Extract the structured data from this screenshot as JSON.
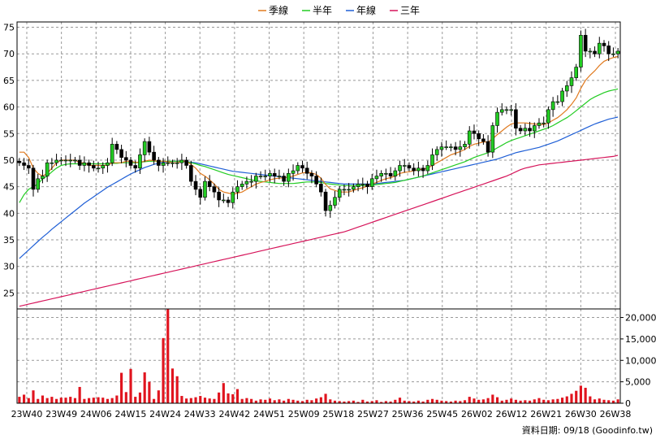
{
  "chart_data": {
    "type": "candlestick",
    "legend": [
      {
        "label": "季線",
        "color": "#e07a1f"
      },
      {
        "label": "半年",
        "color": "#22cc22"
      },
      {
        "label": "年線",
        "color": "#1f5fd6"
      },
      {
        "label": "三年",
        "color": "#d6145a"
      }
    ],
    "legend_position": "top-center",
    "price_axis": {
      "ylim": [
        22,
        76
      ],
      "ticks": [
        25,
        30,
        35,
        40,
        45,
        50,
        55,
        60,
        65,
        70,
        75
      ],
      "side": "left"
    },
    "volume_axis": {
      "ylim": [
        0,
        22000
      ],
      "ticks": [
        0,
        5000,
        10000,
        15000,
        20000
      ],
      "tick_labels": [
        "0",
        "5,000",
        "10,000",
        "15,000",
        "20,000"
      ],
      "side": "right"
    },
    "x_tick_labels": [
      "23W40",
      "23W49",
      "24W06",
      "24W15",
      "24W24",
      "24W33",
      "24W42",
      "24W51",
      "25W09",
      "25W18",
      "25W27",
      "25W36",
      "25W45",
      "26W02",
      "26W12",
      "26W21",
      "26W30",
      "26W38"
    ],
    "grid": true,
    "up_color": "#22cc22",
    "down_color": "#000000",
    "volume_color": "#e0141e",
    "footer_note": "資料日期: 09/18  (Goodinfo.tw)",
    "close": [
      49.5,
      49,
      48.5,
      44.5,
      46.5,
      47,
      49.5,
      49.5,
      50,
      50,
      50,
      50,
      50,
      49,
      49.5,
      49,
      48.5,
      48.5,
      49,
      49.5,
      53,
      52,
      50.5,
      50,
      49,
      48.5,
      51,
      53.5,
      51.5,
      50,
      49,
      49.5,
      49.5,
      49.5,
      49.5,
      50,
      49,
      46,
      44.5,
      43,
      46,
      45,
      44,
      42.5,
      42.5,
      42,
      44,
      45,
      45.5,
      46,
      46,
      47,
      47,
      47,
      47.5,
      47,
      47,
      46,
      47.5,
      48,
      49,
      48.5,
      47.5,
      47,
      45.5,
      44,
      40.5,
      41.5,
      43,
      44.5,
      44.5,
      44.5,
      45,
      45.5,
      45.5,
      45,
      46.5,
      47,
      47.5,
      47.5,
      47,
      48,
      49,
      49,
      48.5,
      48,
      48.5,
      48,
      49,
      51,
      52,
      52.5,
      52.5,
      52.5,
      52,
      52.5,
      53,
      55.5,
      55,
      54,
      53.5,
      51.5,
      56.5,
      59,
      59.5,
      59.5,
      59.5,
      56,
      55.5,
      56,
      55.5,
      56.5,
      57,
      57,
      59.5,
      61,
      61,
      63,
      64,
      65.5,
      67.5,
      73.5,
      70.5,
      70.5,
      70,
      72,
      71.5,
      70,
      70,
      70.5
    ],
    "volume": [
      1500,
      2000,
      1200,
      3000,
      1000,
      1800,
      1200,
      1500,
      1000,
      1300,
      1300,
      1500,
      1200,
      3800,
      1000,
      1200,
      1300,
      1400,
      1300,
      1000,
      1200,
      1800,
      7100,
      2600,
      8000,
      1500,
      2500,
      7200,
      5000,
      1000,
      3000,
      15200,
      21900,
      8100,
      6300,
      1700,
      1100,
      1200,
      1400,
      1700,
      1300,
      1100,
      1000,
      2500,
      4700,
      2300,
      2100,
      3300,
      1000,
      1200,
      1000,
      600,
      900,
      800,
      1100,
      700,
      900,
      600,
      1000,
      800,
      600,
      500,
      800,
      700,
      1100,
      1400,
      2200,
      900,
      600,
      500,
      400,
      500,
      600,
      300,
      800,
      400,
      500,
      700,
      300,
      500,
      400,
      800,
      1300,
      600,
      500,
      400,
      600,
      400,
      800,
      1000,
      800,
      600,
      500,
      400,
      600,
      500,
      700,
      1500,
      1100,
      800,
      900,
      1200,
      2000,
      1400,
      600,
      800,
      1100,
      800,
      600,
      700,
      600,
      900,
      1200,
      800,
      700,
      900,
      1000,
      1300,
      1600,
      2200,
      2900,
      4100,
      3600,
      1600,
      900,
      1100,
      800,
      700,
      600,
      900
    ],
    "ma_quarter": [
      51.5,
      51.5,
      50.5,
      48.5,
      47.5,
      47,
      47.5,
      48.5,
      49.5,
      50,
      50,
      50,
      50,
      49.5,
      49.5,
      49,
      49,
      49,
      49,
      49,
      49.5,
      49.5,
      49.5,
      49.8,
      49.8,
      49.6,
      49.6,
      49.8,
      50,
      49.9,
      49.8,
      49.8,
      49.7,
      49.5,
      49.5,
      49.8,
      49.8,
      49.2,
      48.5,
      47.5,
      47,
      46.3,
      45.5,
      44.5,
      44,
      43.8,
      43.6,
      43.8,
      44,
      44.5,
      45,
      45.5,
      45.8,
      46,
      46.3,
      46.5,
      46.6,
      46.7,
      46.8,
      47,
      47.3,
      47.6,
      47.7,
      47.6,
      47.3,
      46.6,
      45.4,
      44.6,
      44.3,
      44,
      44,
      44,
      44.3,
      44.6,
      44.8,
      45.1,
      45.5,
      45.8,
      46.2,
      46.5,
      46.7,
      47,
      47.5,
      47.7,
      47.8,
      48,
      48.2,
      48.3,
      48.5,
      49,
      49.5,
      50,
      50.5,
      51,
      51.3,
      51.6,
      52,
      52.6,
      53,
      53.2,
      53.4,
      53.4,
      54,
      54.8,
      55.5,
      56.2,
      56.8,
      57,
      57,
      57,
      56.9,
      56.8,
      56.7,
      56.7,
      57,
      57.5,
      58,
      58.7,
      59.5,
      60.5,
      61.7,
      63.5,
      65,
      66,
      66.8,
      67.8,
      68.6,
      69,
      69.3,
      69.5
    ],
    "ma_half": [
      42,
      43.5,
      44.5,
      45,
      45.5,
      46.5,
      47,
      47.8,
      48.5,
      49,
      49.2,
      49.3,
      49.3,
      49.3,
      49.3,
      49.3,
      49.3,
      49.3,
      49.3,
      49.3,
      49.4,
      49.4,
      49.5,
      49.5,
      49.5,
      49.5,
      49.6,
      49.7,
      49.8,
      49.8,
      49.8,
      49.8,
      49.8,
      49.8,
      49.8,
      49.8,
      49.7,
      49.5,
      49.3,
      49,
      48.8,
      48.5,
      48.2,
      47.9,
      47.6,
      47.3,
      47.1,
      46.9,
      46.7,
      46.5,
      46.3,
      46.1,
      46,
      45.9,
      45.8,
      45.7,
      45.6,
      45.6,
      45.6,
      45.6,
      45.7,
      45.8,
      45.9,
      45.9,
      45.9,
      45.8,
      45.6,
      45.5,
      45.4,
      45.3,
      45.2,
      45.2,
      45.2,
      45.2,
      45.2,
      45.3,
      45.3,
      45.4,
      45.5,
      45.6,
      45.7,
      45.8,
      46,
      46.2,
      46.4,
      46.6,
      46.8,
      47,
      47.3,
      47.6,
      47.9,
      48.2,
      48.5,
      48.8,
      49.1,
      49.4,
      49.7,
      50.1,
      50.5,
      50.8,
      51.1,
      51.4,
      51.8,
      52.3,
      52.8,
      53.3,
      53.7,
      54,
      54.3,
      54.6,
      54.9,
      55.2,
      55.5,
      55.8,
      56.1,
      56.5,
      57,
      57.5,
      58,
      58.6,
      59.3,
      60,
      60.7,
      61.4,
      61.9,
      62.3,
      62.7,
      63,
      63.2,
      63.4
    ],
    "ma_year": [
      31.5,
      32.3,
      33.1,
      33.9,
      34.7,
      35.5,
      36.2,
      37,
      37.7,
      38.4,
      39.1,
      39.8,
      40.5,
      41.2,
      41.9,
      42.5,
      43.1,
      43.7,
      44.3,
      44.9,
      45.4,
      45.9,
      46.4,
      46.9,
      47.4,
      47.8,
      48.2,
      48.6,
      48.9,
      49.2,
      49.4,
      49.6,
      49.7,
      49.8,
      49.8,
      49.8,
      49.7,
      49.6,
      49.5,
      49.3,
      49.1,
      48.9,
      48.7,
      48.5,
      48.3,
      48.1,
      47.9,
      47.8,
      47.7,
      47.6,
      47.5,
      47.4,
      47.3,
      47.2,
      47.1,
      47,
      46.9,
      46.8,
      46.7,
      46.6,
      46.5,
      46.4,
      46.3,
      46.2,
      46.1,
      46,
      45.9,
      45.8,
      45.7,
      45.6,
      45.5,
      45.5,
      45.5,
      45.5,
      45.5,
      45.5,
      45.5,
      45.6,
      45.7,
      45.8,
      45.9,
      46,
      46.1,
      46.2,
      46.4,
      46.6,
      46.8,
      47,
      47.2,
      47.4,
      47.6,
      47.8,
      48,
      48.2,
      48.4,
      48.6,
      48.8,
      49,
      49.2,
      49.4,
      49.6,
      49.8,
      50,
      50.2,
      50.5,
      50.8,
      51.1,
      51.4,
      51.6,
      51.8,
      52,
      52.2,
      52.4,
      52.7,
      53,
      53.3,
      53.6,
      54,
      54.4,
      54.8,
      55.2,
      55.6,
      56,
      56.4,
      56.8,
      57.1,
      57.4,
      57.7,
      57.9,
      58.1
    ],
    "ma_3year": [
      22.5,
      22.7,
      22.9,
      23.1,
      23.3,
      23.5,
      23.7,
      23.9,
      24.1,
      24.3,
      24.5,
      24.7,
      24.9,
      25.1,
      25.3,
      25.5,
      25.7,
      25.9,
      26.1,
      26.3,
      26.5,
      26.7,
      26.9,
      27.1,
      27.3,
      27.5,
      27.7,
      27.9,
      28.1,
      28.3,
      28.5,
      28.7,
      28.9,
      29.1,
      29.3,
      29.5,
      29.7,
      29.9,
      30.1,
      30.3,
      30.5,
      30.7,
      30.9,
      31.1,
      31.3,
      31.5,
      31.7,
      31.9,
      32.1,
      32.3,
      32.5,
      32.7,
      32.9,
      33.1,
      33.3,
      33.5,
      33.7,
      33.9,
      34.1,
      34.3,
      34.5,
      34.7,
      34.9,
      35.1,
      35.3,
      35.5,
      35.7,
      35.9,
      36.1,
      36.3,
      36.5,
      36.8,
      37.1,
      37.4,
      37.7,
      38,
      38.3,
      38.6,
      38.9,
      39.2,
      39.5,
      39.8,
      40.1,
      40.4,
      40.7,
      41,
      41.3,
      41.6,
      41.9,
      42.2,
      42.5,
      42.8,
      43.1,
      43.4,
      43.7,
      44,
      44.3,
      44.6,
      44.9,
      45.2,
      45.5,
      45.8,
      46.1,
      46.4,
      46.7,
      47,
      47.4,
      47.8,
      48.2,
      48.5,
      48.7,
      48.9,
      49.1,
      49.2,
      49.3,
      49.4,
      49.5,
      49.6,
      49.7,
      49.8,
      49.9,
      50,
      50.1,
      50.2,
      50.3,
      50.4,
      50.5,
      50.6,
      50.7,
      50.9
    ]
  }
}
